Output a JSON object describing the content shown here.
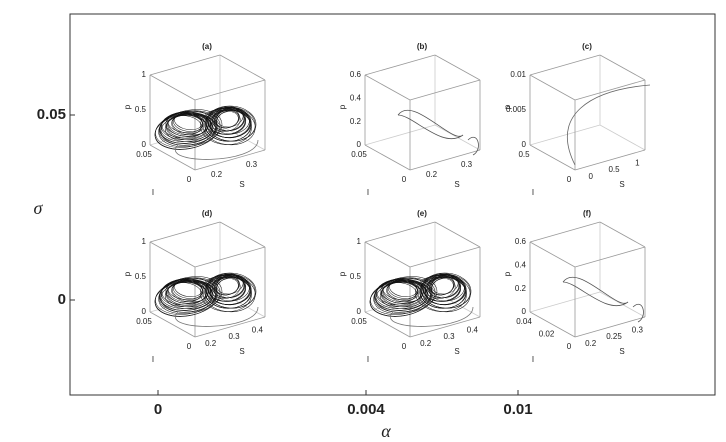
{
  "figure": {
    "x_label": "α",
    "y_label": "σ",
    "x_ticks": [
      "0",
      "0.004",
      "0.01"
    ],
    "y_ticks": [
      "0.05",
      "0"
    ],
    "panels": [
      {
        "label": "(a)",
        "p_name": "p",
        "i_name": "I",
        "s_name": "S",
        "p_ticks": [
          "0",
          "0.5",
          "1"
        ],
        "i_ticks": [
          "0.05",
          "0"
        ],
        "s_ticks": [
          "0.2",
          "0.3"
        ]
      },
      {
        "label": "(b)",
        "p_name": "p",
        "i_name": "I",
        "s_name": "S",
        "p_ticks": [
          "0",
          "0.2",
          "0.4",
          "0.6"
        ],
        "i_ticks": [
          "0.05",
          "0"
        ],
        "s_ticks": [
          "0.2",
          "0.3"
        ]
      },
      {
        "label": "(c)",
        "p_name": "p",
        "i_name": "I",
        "s_name": "S",
        "p_ticks": [
          "0",
          "0.005",
          "0.01"
        ],
        "i_ticks": [
          "0.5",
          "0"
        ],
        "s_ticks": [
          "0",
          "0.5",
          "1"
        ]
      },
      {
        "label": "(d)",
        "p_name": "p",
        "i_name": "I",
        "s_name": "S",
        "p_ticks": [
          "0",
          "0.5",
          "1"
        ],
        "i_ticks": [
          "0.05",
          "0"
        ],
        "s_ticks": [
          "0.2",
          "0.3",
          "0.4"
        ]
      },
      {
        "label": "(e)",
        "p_name": "p",
        "i_name": "I",
        "s_name": "S",
        "p_ticks": [
          "0",
          "0.5",
          "1"
        ],
        "i_ticks": [
          "0.05",
          "0"
        ],
        "s_ticks": [
          "0.2",
          "0.3",
          "0.4"
        ]
      },
      {
        "label": "(f)",
        "p_name": "p",
        "i_name": "I",
        "s_name": "S",
        "p_ticks": [
          "0",
          "0.2",
          "0.4",
          "0.6"
        ],
        "i_ticks": [
          "0.04",
          "0.02",
          "0"
        ],
        "s_ticks": [
          "0.2",
          "0.25",
          "0.3"
        ]
      }
    ]
  }
}
